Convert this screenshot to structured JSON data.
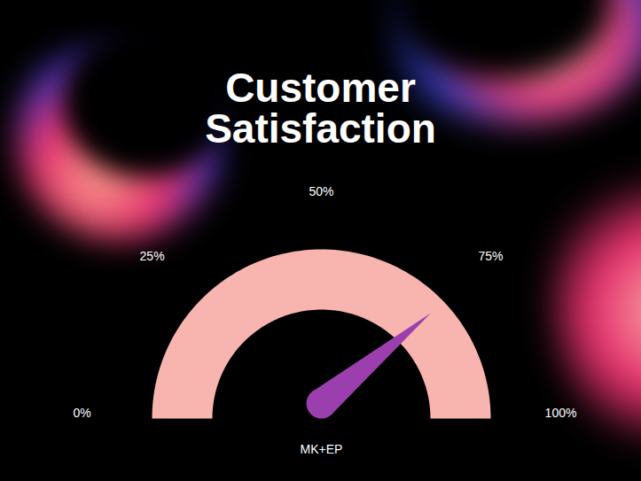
{
  "chart_data": {
    "type": "gauge",
    "title": "Customer Satisfaction",
    "value": 78,
    "ylim": [
      0,
      100
    ],
    "yticks": [
      {
        "value": 0,
        "label": "0%"
      },
      {
        "value": 25,
        "label": "25%"
      },
      {
        "value": 50,
        "label": "50%"
      },
      {
        "value": 75,
        "label": "75%"
      },
      {
        "value": 100,
        "label": "100%"
      }
    ],
    "colors": [
      "#f8b4ae",
      "#9b3fae"
    ],
    "caption": "MK+EP"
  }
}
